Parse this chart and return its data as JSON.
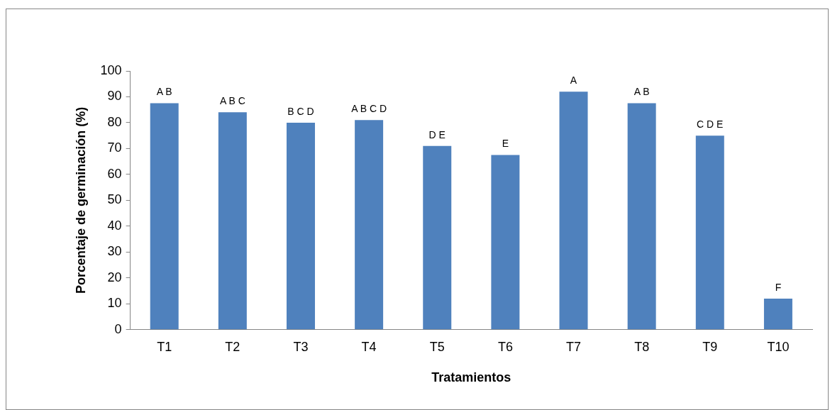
{
  "chart_data": {
    "type": "bar",
    "xlabel": "Tratamientos",
    "ylabel": "Porcentaje de germinación (%)",
    "categories": [
      "T1",
      "T2",
      "T3",
      "T4",
      "T5",
      "T6",
      "T7",
      "T8",
      "T9",
      "T10"
    ],
    "values": [
      87.5,
      84,
      80,
      81,
      71,
      67.5,
      92,
      87.5,
      75,
      12
    ],
    "color": "#4f81bd",
    "ylim": [
      0,
      100
    ],
    "yticks": [
      0,
      10,
      20,
      30,
      40,
      50,
      60,
      70,
      80,
      90,
      100
    ],
    "grid": false,
    "legend": false,
    "annotations": [
      {
        "text": "A B",
        "x": "T1",
        "y": 87.5
      },
      {
        "text": "A B C",
        "x": "T2",
        "y": 84
      },
      {
        "text": "B C D",
        "x": "T3",
        "y": 80
      },
      {
        "text": "A B C D",
        "x": "T4",
        "y": 81
      },
      {
        "text": "D E",
        "x": "T5",
        "y": 71
      },
      {
        "text": "E",
        "x": "T6",
        "y": 67.5
      },
      {
        "text": "A",
        "x": "T7",
        "y": 92
      },
      {
        "text": "A B",
        "x": "T8",
        "y": 87.5
      },
      {
        "text": "C D E",
        "x": "T9",
        "y": 75
      },
      {
        "text": "F",
        "x": "T10",
        "y": 12
      }
    ]
  }
}
